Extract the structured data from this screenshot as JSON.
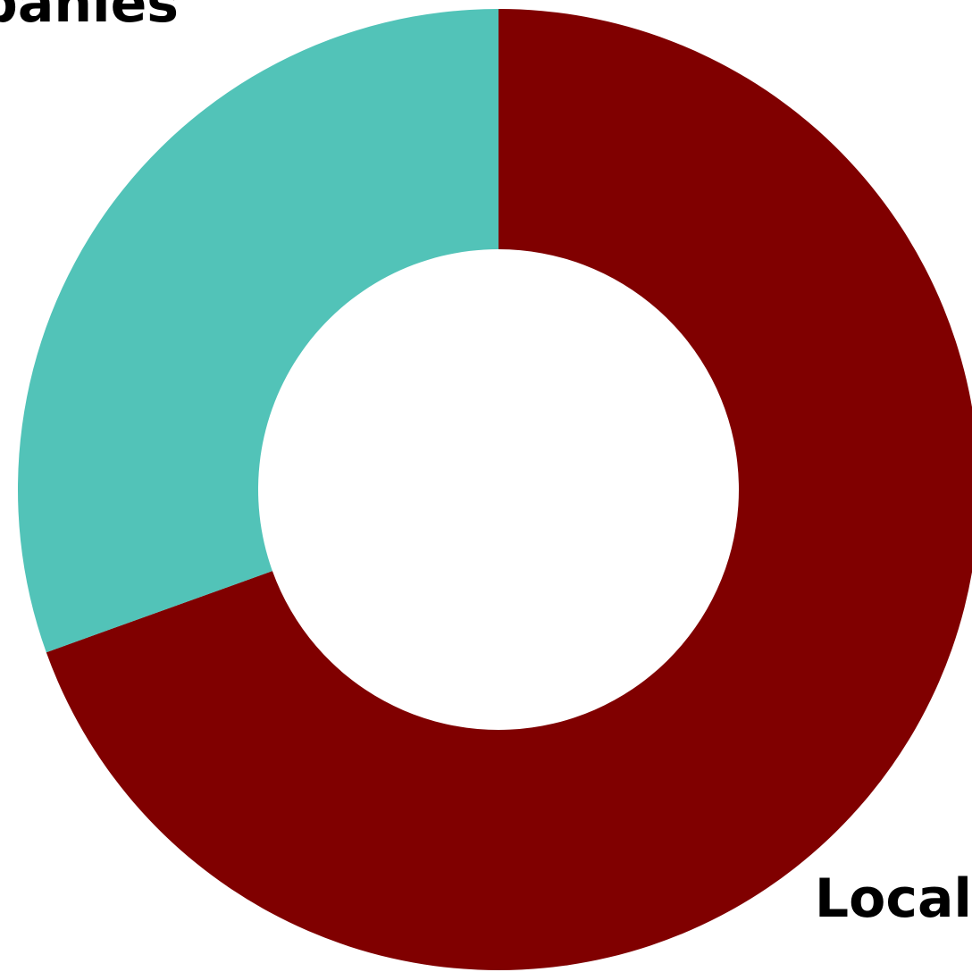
{
  "chart_data": {
    "type": "pie",
    "donut": true,
    "title": "",
    "slices": [
      {
        "label": "Local",
        "value": 69.5,
        "color": "#800000"
      },
      {
        "label": "panies",
        "value": 30.5,
        "color": "#52C3B8"
      }
    ]
  }
}
